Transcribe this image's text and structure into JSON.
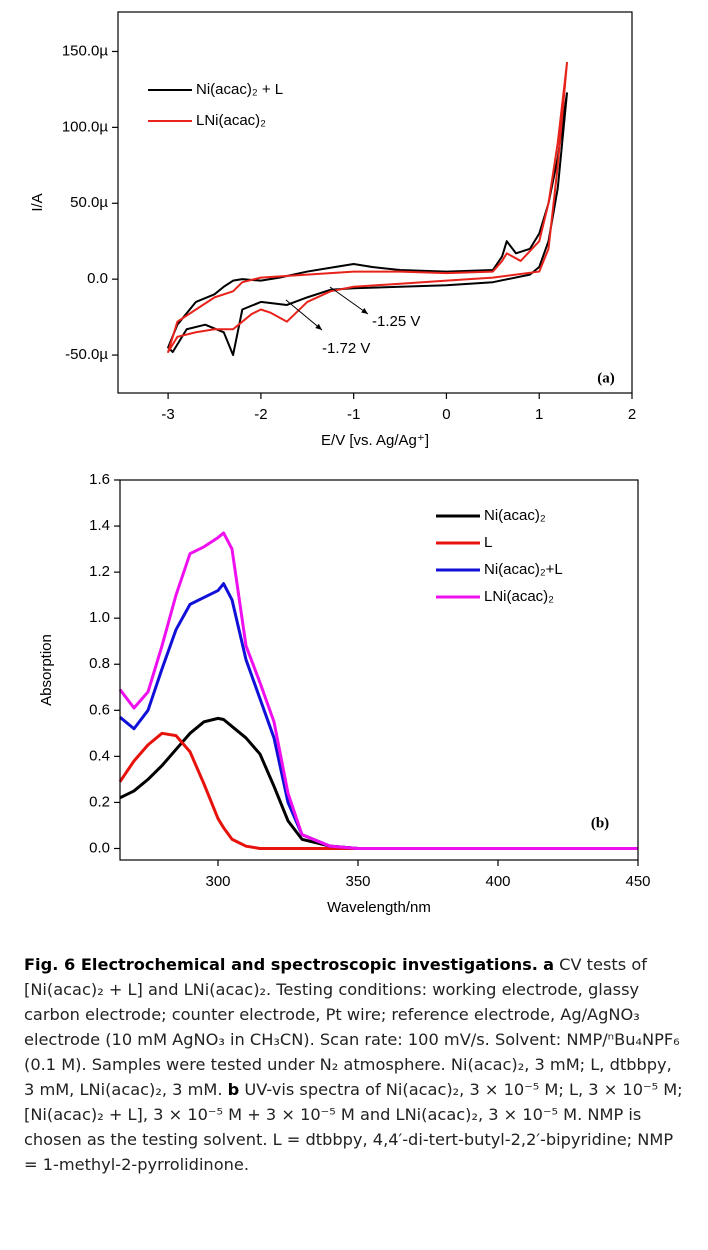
{
  "chart_data": [
    {
      "type": "line",
      "x_label": "E/V [vs. Ag/Ag⁺]",
      "y_label": "I/A",
      "xlim": [
        -3.54,
        2
      ],
      "ylim": [
        -7.5e-05,
        0.000176
      ],
      "xticks": [
        -3,
        -2,
        -1,
        0,
        1,
        2
      ],
      "yticks": [
        {
          "value": -5e-05,
          "label": "-50.0µ"
        },
        {
          "value": 0,
          "label": "0.0"
        },
        {
          "value": 5e-05,
          "label": "50.0µ"
        },
        {
          "value": 0.0001,
          "label": "100.0µ"
        },
        {
          "value": 0.00015,
          "label": "150.0µ"
        }
      ],
      "legend": "upper left",
      "annotations": [
        "-1.25 V",
        "-1.72 V",
        "(a)"
      ],
      "series": [
        {
          "name": "Ni(acac)₂ + L",
          "color": "#000000",
          "x": [
            1.3,
            1.2,
            1.1,
            1.0,
            0.9,
            0.5,
            0,
            -0.5,
            -1.0,
            -1.25,
            -1.5,
            -1.72,
            -2.0,
            -2.2,
            -2.3,
            -2.4,
            -2.6,
            -2.8,
            -2.95,
            -3.0,
            -2.9,
            -2.7,
            -2.5,
            -2.4,
            -2.3,
            -2.2,
            -2.0,
            -1.8,
            -1.5,
            -1.2,
            -1.0,
            -0.8,
            -0.5,
            0,
            0.5,
            0.6,
            0.65,
            0.75,
            0.9,
            1.0,
            1.1,
            1.2,
            1.3
          ],
          "values": [
            0.000123,
            6e-05,
            2.5e-05,
            8e-06,
            3e-06,
            -2e-06,
            -4e-06,
            -5e-06,
            -6e-06,
            -7e-06,
            -1.2e-05,
            -1.7e-05,
            -1.5e-05,
            -2e-05,
            -5e-05,
            -3.5e-05,
            -3e-05,
            -3.3e-05,
            -4.8e-05,
            -4.5e-05,
            -3e-05,
            -1.5e-05,
            -1e-05,
            -5e-06,
            -1e-06,
            0,
            -1e-06,
            1e-06,
            5e-06,
            8e-06,
            1e-05,
            8e-06,
            6e-06,
            5e-06,
            6e-06,
            1.5e-05,
            2.5e-05,
            1.7e-05,
            2e-05,
            3e-05,
            5e-05,
            8e-05,
            0.000123
          ]
        },
        {
          "name": "LNi(acac)₂",
          "color": "#e8231b",
          "x": [
            1.3,
            1.2,
            1.1,
            1.0,
            0.5,
            0,
            -0.5,
            -1.0,
            -1.25,
            -1.5,
            -1.72,
            -1.9,
            -2.0,
            -2.1,
            -2.3,
            -2.5,
            -2.7,
            -2.9,
            -3.0,
            -2.9,
            -2.7,
            -2.5,
            -2.3,
            -2.2,
            -2.0,
            -1.5,
            -1.0,
            -0.5,
            0,
            0.5,
            0.6,
            0.65,
            0.8,
            1.0,
            1.1,
            1.2,
            1.3
          ],
          "values": [
            0.000143,
            7.5e-05,
            2e-05,
            5e-06,
            1e-06,
            -1e-06,
            -3e-06,
            -5e-06,
            -8e-06,
            -1.5e-05,
            -2.8e-05,
            -2.2e-05,
            -2e-05,
            -2.3e-05,
            -3.3e-05,
            -3.3e-05,
            -3.5e-05,
            -3.8e-05,
            -4.8e-05,
            -2.8e-05,
            -2e-05,
            -1.2e-05,
            -8e-06,
            -2e-06,
            1e-06,
            3e-06,
            5e-06,
            5e-06,
            4e-06,
            5e-06,
            1.2e-05,
            1.7e-05,
            1.2e-05,
            2.5e-05,
            5e-05,
            9e-05,
            0.000143
          ]
        }
      ]
    },
    {
      "type": "line",
      "x_label": "Wavelength/nm",
      "y_label": "Absorption",
      "xlim": [
        265,
        450
      ],
      "ylim": [
        -0.05,
        1.6
      ],
      "xticks": [
        300,
        350,
        400,
        450
      ],
      "yticks": [
        {
          "value": 0,
          "label": "0.0"
        },
        0.2,
        0.4,
        0.6,
        0.8,
        {
          "value": 1,
          "label": "1.0"
        },
        1.2,
        1.4,
        1.6
      ],
      "legend": "upper right",
      "annotations": [
        "(b)"
      ],
      "x": [
        265,
        270,
        275,
        280,
        285,
        290,
        295,
        300,
        302,
        305,
        310,
        315,
        320,
        325,
        330,
        340,
        350,
        375,
        400,
        425,
        450
      ],
      "series": [
        {
          "name": "Ni(acac)₂",
          "color": "#000000",
          "values": [
            0.22,
            0.25,
            0.3,
            0.36,
            0.43,
            0.5,
            0.55,
            0.565,
            0.56,
            0.53,
            0.48,
            0.41,
            0.27,
            0.12,
            0.04,
            0.01,
            0,
            0,
            0,
            0,
            0
          ]
        },
        {
          "name": "L",
          "color": "#e8120c",
          "values": [
            0.29,
            0.38,
            0.45,
            0.5,
            0.49,
            0.42,
            0.28,
            0.13,
            0.09,
            0.04,
            0.01,
            0,
            0,
            0,
            0,
            0,
            0,
            0,
            0,
            0,
            0
          ]
        },
        {
          "name": "Ni(acac)₂+L",
          "color": "#1010d8",
          "values": [
            0.57,
            0.52,
            0.6,
            0.78,
            0.95,
            1.06,
            1.09,
            1.12,
            1.15,
            1.08,
            0.82,
            0.65,
            0.48,
            0.2,
            0.06,
            0.01,
            0,
            0,
            0,
            0,
            0
          ]
        },
        {
          "name": "LNi(acac)₂",
          "color": "#ee10ee",
          "values": [
            0.69,
            0.61,
            0.68,
            0.88,
            1.1,
            1.28,
            1.31,
            1.35,
            1.37,
            1.3,
            0.88,
            0.72,
            0.55,
            0.24,
            0.06,
            0.01,
            0,
            0,
            0,
            0,
            0
          ]
        }
      ]
    }
  ],
  "caption": {
    "segments": [
      "Fig. 6 Electrochemical and spectroscopic investigations.",
      "a",
      "CV tests of [Ni(acac)₂ + L] and LNi(acac)₂. Testing conditions: working electrode, glassy carbon electrode; counter electrode, Pt wire; reference electrode, Ag/AgNO₃ electrode (10 mM AgNO₃ in CH₃CN). Scan rate: 100 mV/s. Solvent: NMP/ⁿBu₄NPF₆ (0.1 M). Samples were tested under N₂ atmosphere. Ni(acac)₂, 3 mM; L, dtbbpy, 3 mM, LNi(acac)₂, 3 mM.",
      "b",
      "UV-vis spectra of Ni(acac)₂, 3 × 10⁻⁵ M; L, 3 × 10⁻⁵ M; [Ni(acac)₂ + L], 3 × 10⁻⁵ M + 3 × 10⁻⁵ M and LNi(acac)₂, 3 × 10⁻⁵ M. NMP is chosen as the testing solvent. L = dtbbpy, 4,4′-di-tert-butyl-2,2′-bipyridine; NMP = 1-methyl-2-pyrrolidinone."
    ]
  }
}
